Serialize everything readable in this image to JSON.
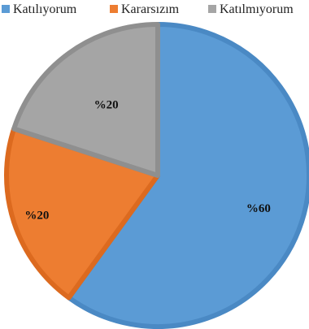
{
  "chart_data": {
    "type": "pie",
    "title": "",
    "legend_position": "top",
    "categories": [
      "Katılıyorum",
      "Kararsızım",
      "Katılmıyorum"
    ],
    "values": [
      60,
      20,
      20
    ],
    "data_labels": [
      "%60",
      "%20",
      "%20"
    ],
    "colors": [
      "#5b9bd5",
      "#ed7d31",
      "#a5a5a5"
    ],
    "edge_colors": [
      "#4a89c4",
      "#dc6a1f",
      "#8f8f8f"
    ]
  }
}
